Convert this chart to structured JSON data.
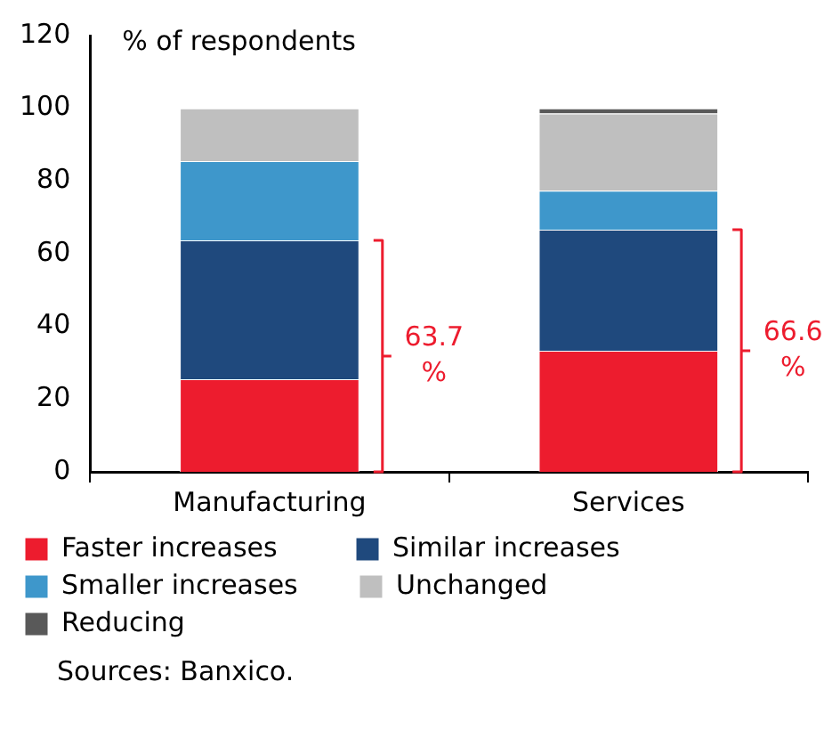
{
  "chart_data": {
    "type": "bar",
    "stacked": true,
    "ylabel": "% of respondents",
    "categories": [
      "Manufacturing",
      "Services"
    ],
    "series": [
      {
        "name": "Faster increases",
        "color": "#ed1c2e",
        "values": [
          25.5,
          33.3
        ]
      },
      {
        "name": "Similar increases",
        "color": "#1f497d",
        "values": [
          38.2,
          33.3
        ]
      },
      {
        "name": "Smaller increases",
        "color": "#3e97cb",
        "values": [
          21.8,
          10.7
        ]
      },
      {
        "name": "Unchanged",
        "color": "#bfbfbf",
        "values": [
          14.5,
          21.3
        ]
      },
      {
        "name": "Reducing",
        "color": "#595959",
        "values": [
          null,
          1.4
        ]
      }
    ],
    "ylim": [
      0,
      120
    ],
    "yticks": [
      0,
      20,
      40,
      60,
      80,
      100,
      120
    ],
    "grid": false,
    "legend": "bottom",
    "annotations": [
      "63.7 %",
      "66.6 %",
      "Sources: Banxico."
    ]
  }
}
